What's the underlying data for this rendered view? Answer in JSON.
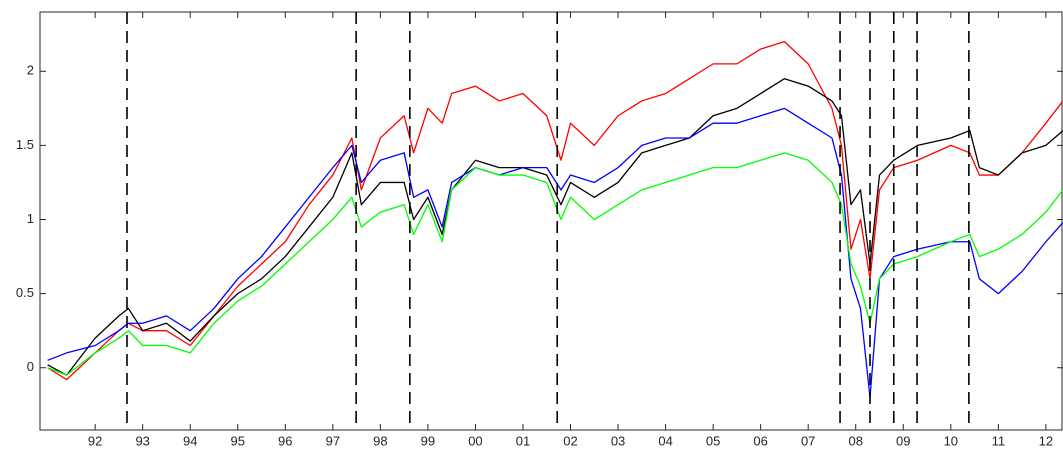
{
  "chart_data": {
    "type": "line",
    "x": [
      1991.0,
      1991.4,
      1992.0,
      1992.5,
      1992.7,
      1993.0,
      1993.5,
      1994.0,
      1994.5,
      1995.0,
      1995.5,
      1996.0,
      1996.5,
      1997.0,
      1997.4,
      1997.6,
      1998.0,
      1998.5,
      1998.7,
      1999.0,
      1999.3,
      1999.5,
      2000.0,
      2000.5,
      2001.0,
      2001.5,
      2001.8,
      2002.0,
      2002.5,
      2003.0,
      2003.5,
      2004.0,
      2004.5,
      2005.0,
      2005.5,
      2006.0,
      2006.5,
      2007.0,
      2007.5,
      2007.7,
      2007.9,
      2008.1,
      2008.3,
      2008.5,
      2008.8,
      2009.3,
      2010.0,
      2010.4,
      2010.6,
      2011.0,
      2011.5,
      2012.0,
      2012.36
    ],
    "series": [
      {
        "color": "#ff0000",
        "values": [
          0.0,
          -0.08,
          0.1,
          0.25,
          0.3,
          0.25,
          0.25,
          0.15,
          0.35,
          0.55,
          0.7,
          0.85,
          1.1,
          1.3,
          1.55,
          1.2,
          1.55,
          1.7,
          1.45,
          1.75,
          1.65,
          1.85,
          1.9,
          1.8,
          1.85,
          1.7,
          1.4,
          1.65,
          1.5,
          1.7,
          1.8,
          1.85,
          1.95,
          2.05,
          2.05,
          2.15,
          2.2,
          2.05,
          1.75,
          1.5,
          0.8,
          1.0,
          0.6,
          1.2,
          1.35,
          1.4,
          1.5,
          1.45,
          1.3,
          1.3,
          1.45,
          1.65,
          1.8
        ]
      },
      {
        "color": "#000000",
        "values": [
          0.02,
          -0.05,
          0.2,
          0.35,
          0.4,
          0.25,
          0.3,
          0.18,
          0.35,
          0.5,
          0.6,
          0.75,
          0.95,
          1.15,
          1.45,
          1.1,
          1.25,
          1.25,
          1.0,
          1.15,
          0.9,
          1.2,
          1.4,
          1.35,
          1.35,
          1.3,
          1.1,
          1.25,
          1.15,
          1.25,
          1.45,
          1.5,
          1.55,
          1.7,
          1.75,
          1.85,
          1.95,
          1.9,
          1.8,
          1.7,
          1.1,
          1.2,
          0.7,
          1.3,
          1.4,
          1.5,
          1.55,
          1.6,
          1.35,
          1.3,
          1.45,
          1.5,
          1.6
        ]
      },
      {
        "color": "#0000ff",
        "values": [
          0.05,
          0.1,
          0.15,
          0.25,
          0.3,
          0.3,
          0.35,
          0.25,
          0.4,
          0.6,
          0.75,
          0.95,
          1.15,
          1.35,
          1.5,
          1.25,
          1.4,
          1.45,
          1.15,
          1.2,
          0.95,
          1.25,
          1.35,
          1.3,
          1.35,
          1.35,
          1.2,
          1.3,
          1.25,
          1.35,
          1.5,
          1.55,
          1.55,
          1.65,
          1.65,
          1.7,
          1.75,
          1.65,
          1.55,
          1.3,
          0.6,
          0.4,
          -0.2,
          0.6,
          0.75,
          0.8,
          0.85,
          0.85,
          0.6,
          0.5,
          0.65,
          0.85,
          0.98
        ]
      },
      {
        "color": "#00ff00",
        "values": [
          0.0,
          -0.05,
          0.1,
          0.2,
          0.25,
          0.15,
          0.15,
          0.1,
          0.3,
          0.45,
          0.55,
          0.7,
          0.85,
          1.0,
          1.15,
          0.95,
          1.05,
          1.1,
          0.9,
          1.1,
          0.85,
          1.2,
          1.35,
          1.3,
          1.3,
          1.25,
          1.0,
          1.15,
          1.0,
          1.1,
          1.2,
          1.25,
          1.3,
          1.35,
          1.35,
          1.4,
          1.45,
          1.4,
          1.25,
          1.1,
          0.7,
          0.55,
          0.3,
          0.6,
          0.7,
          0.75,
          0.85,
          0.9,
          0.75,
          0.8,
          0.9,
          1.05,
          1.2
        ]
      }
    ],
    "vlines": [
      1992.67,
      1997.49,
      1998.62,
      2001.72,
      2007.67,
      2008.3,
      2008.8,
      2009.29,
      2010.38
    ],
    "xlim": [
      1990.84,
      2012.36
    ],
    "xticks": [
      {
        "value": 1992,
        "label": "92"
      },
      {
        "value": 1993,
        "label": "93"
      },
      {
        "value": 1994,
        "label": "94"
      },
      {
        "value": 1995,
        "label": "95"
      },
      {
        "value": 1996,
        "label": "96"
      },
      {
        "value": 1997,
        "label": "97"
      },
      {
        "value": 1998,
        "label": "98"
      },
      {
        "value": 1999,
        "label": "99"
      },
      {
        "value": 2000,
        "label": "00"
      },
      {
        "value": 2001,
        "label": "01"
      },
      {
        "value": 2002,
        "label": "02"
      },
      {
        "value": 2003,
        "label": "03"
      },
      {
        "value": 2004,
        "label": "04"
      },
      {
        "value": 2005,
        "label": "05"
      },
      {
        "value": 2006,
        "label": "06"
      },
      {
        "value": 2007,
        "label": "07"
      },
      {
        "value": 2008,
        "label": "08"
      },
      {
        "value": 2009,
        "label": "09"
      },
      {
        "value": 2010,
        "label": "10"
      },
      {
        "value": 2011,
        "label": "11"
      },
      {
        "value": 2012,
        "label": "12"
      }
    ],
    "ylim": [
      -0.42,
      2.4
    ],
    "yticks": [
      0,
      0.5,
      1,
      1.5,
      2
    ]
  }
}
